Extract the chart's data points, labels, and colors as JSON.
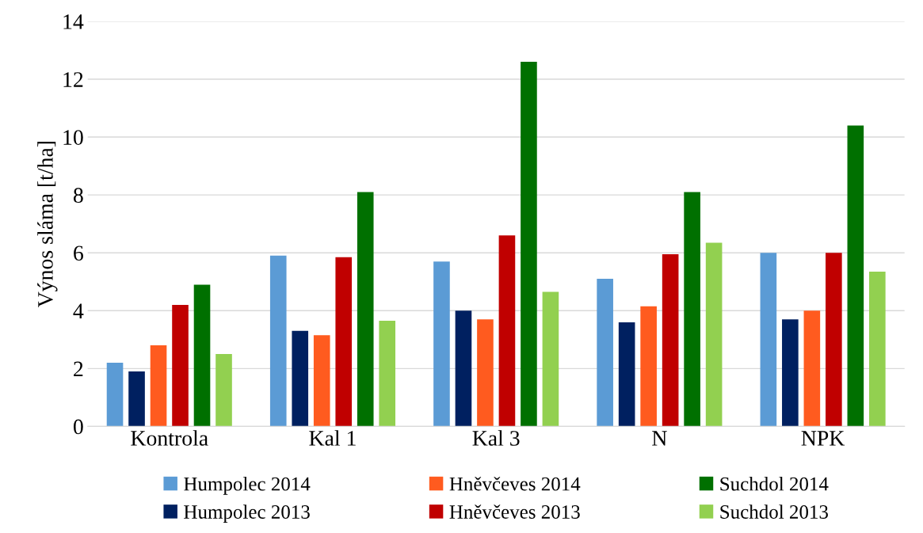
{
  "chart_data": {
    "type": "bar",
    "ylabel": "Výnos sláma [t/ha]",
    "categories": [
      "Kontrola",
      "Kal 1",
      "Kal 3",
      "N",
      "NPK"
    ],
    "series": [
      {
        "name": "Humpolec 2014",
        "color": "#5b9bd5",
        "values": [
          2.2,
          5.9,
          5.7,
          5.1,
          6.0
        ]
      },
      {
        "name": "Humpolec 2013",
        "color": "#002060",
        "values": [
          1.9,
          3.3,
          4.0,
          3.6,
          3.7
        ]
      },
      {
        "name": "Hněvčeves 2014",
        "color": "#ff5b1f",
        "values": [
          2.8,
          3.15,
          3.7,
          4.15,
          4.0
        ]
      },
      {
        "name": "Hněvčeves 2013",
        "color": "#c00000",
        "values": [
          4.2,
          5.85,
          6.6,
          5.95,
          6.0
        ]
      },
      {
        "name": "Suchdol 2014",
        "color": "#007000",
        "values": [
          4.9,
          8.1,
          12.6,
          8.1,
          10.4
        ]
      },
      {
        "name": "Suchdol 2013",
        "color": "#92d050",
        "values": [
          2.5,
          3.65,
          4.65,
          6.35,
          5.35
        ]
      }
    ],
    "ylim": [
      0,
      14
    ],
    "yticks": [
      0,
      2,
      4,
      6,
      8,
      10,
      12,
      14
    ],
    "grid": "y",
    "legend": "bottom"
  }
}
